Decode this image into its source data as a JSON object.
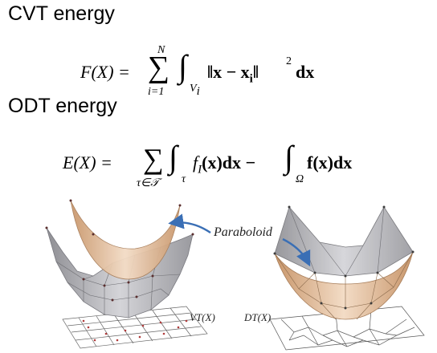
{
  "headings": {
    "cvt": "CVT energy",
    "odt": "ODT energy"
  },
  "equations": {
    "cvt": {
      "lhs": "F(X) =",
      "sum_upper": "N",
      "sum_lower": "i=1",
      "integral_domain": "V",
      "integral_domain_sub": "i",
      "integrand": "‖x − x",
      "integrand_sub": "i",
      "integrand_tail": "‖",
      "power": "2",
      "differential": "dx"
    },
    "odt": {
      "lhs": "E(X) =",
      "sum_lower": "τ∈𝒯",
      "integral1_domain": "τ",
      "integrand1": "f",
      "integrand1_sub": "I",
      "integrand1_tail": "(x)dx −",
      "integral2_domain": "Ω",
      "integrand2": "f(x)dx"
    }
  },
  "figure": {
    "annotation": "Paraboloid",
    "left_label": "VT(X)",
    "right_label": "DT(X)",
    "colors": {
      "paraboloid": "#e9c39f",
      "paraboloid_dark": "#c9976c",
      "mesh_gray": "#a9a9ad",
      "arrow_blue": "#3a6fb5",
      "grid_line": "#666666"
    }
  }
}
